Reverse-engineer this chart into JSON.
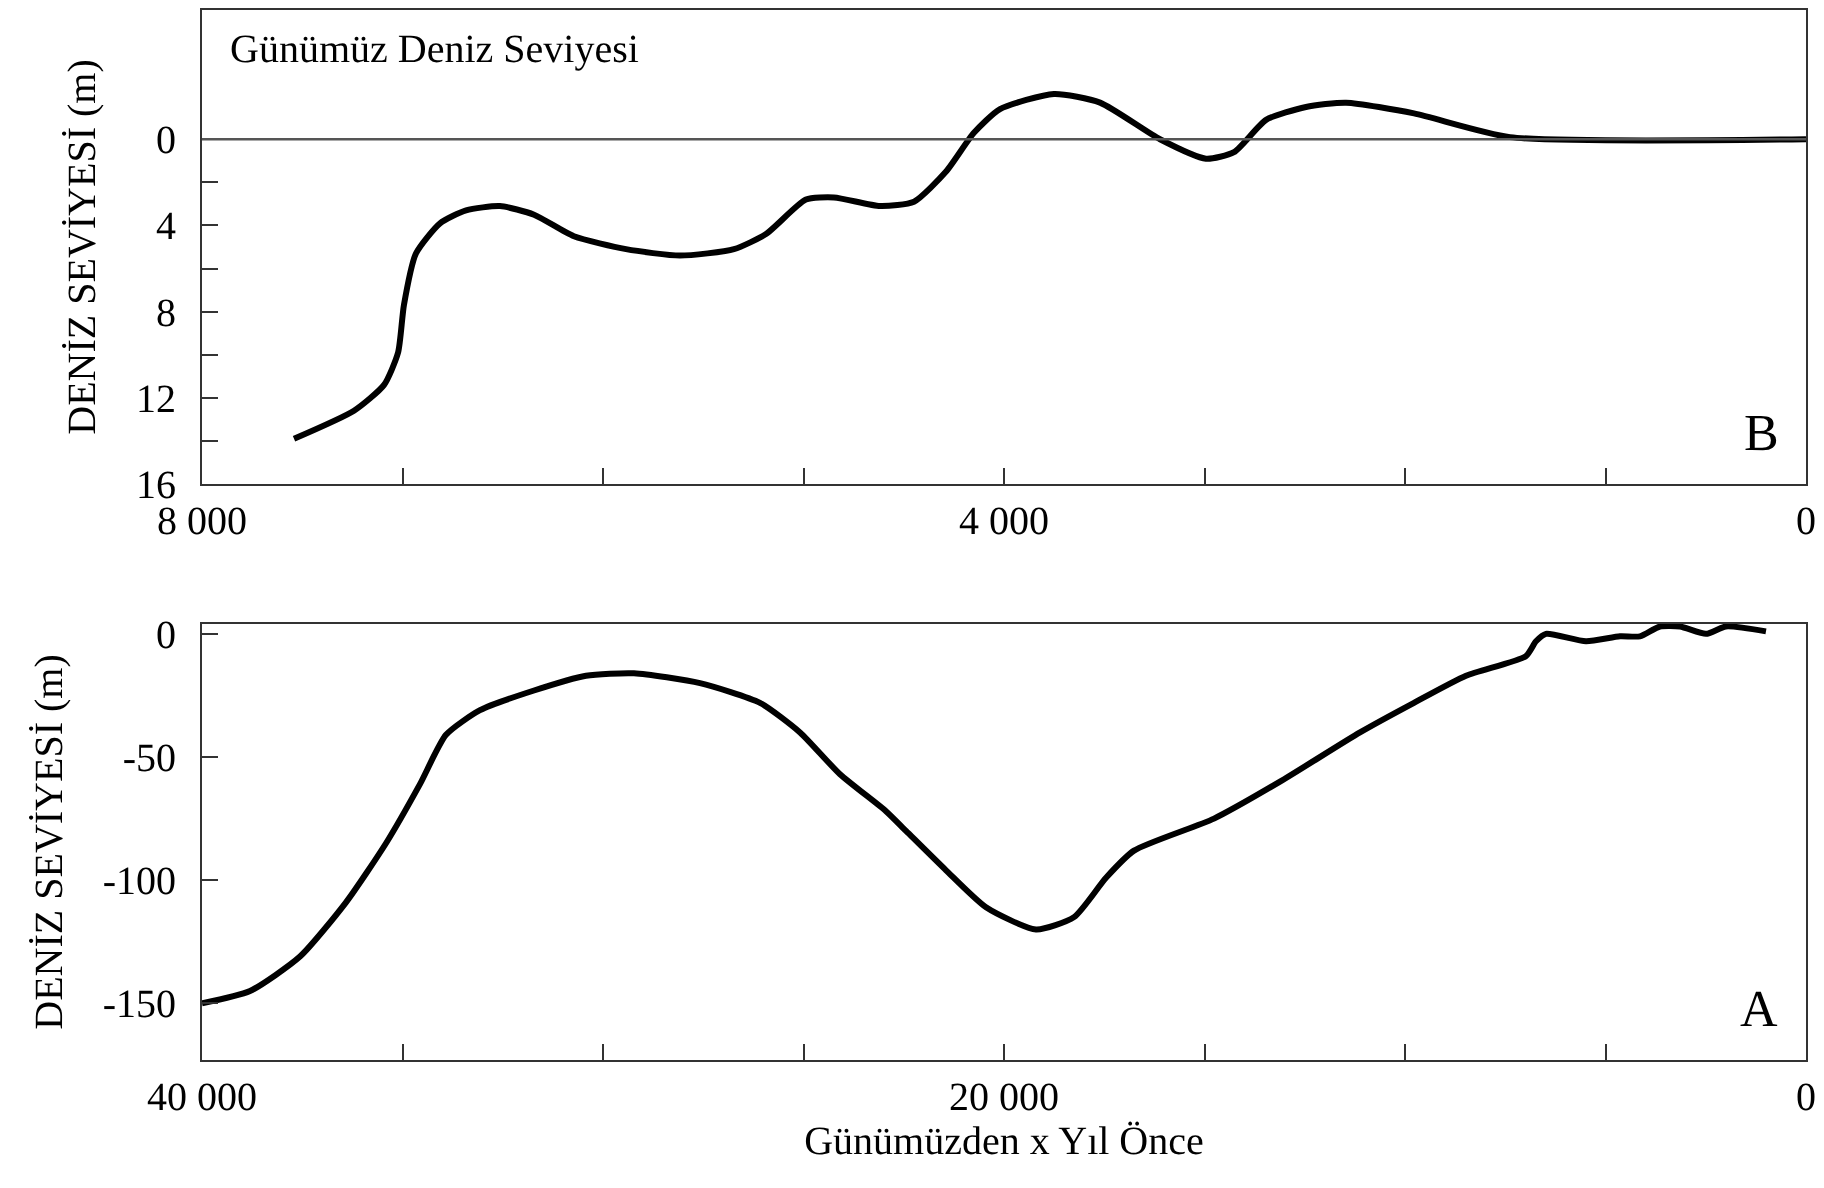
{
  "chart_data": [
    {
      "type": "line",
      "ylabel": "DENİZ SEVİYESİ (m)",
      "annotations": [
        "B"
      ],
      "grid": false,
      "x": [
        7541,
        7242,
        7092,
        7022,
        6993,
        6933,
        6813,
        6683,
        6514,
        6344,
        6145,
        5885,
        5616,
        5347,
        5187,
        4988,
        4848,
        4618,
        4449,
        4289,
        4150,
        4020,
        3751,
        3521,
        3222,
        2993,
        2853,
        2693,
        2494,
        2294,
        1955,
        1476,
        0
      ],
      "series": [
        {
          "color": "#000000",
          "values": [
            13.9,
            12.6,
            11.4,
            9.9,
            7.7,
            5.3,
            3.9,
            3.3,
            3.1,
            3.5,
            4.5,
            5.1,
            5.4,
            5.1,
            4.4,
            2.8,
            2.7,
            3.1,
            2.9,
            1.5,
            -0.3,
            -1.4,
            -2.1,
            -1.7,
            0,
            0.9,
            0.6,
            -0.9,
            -1.5,
            -1.7,
            -1.2,
            -0.1,
            0
          ]
        }
      ],
      "xlim": [
        8000,
        0
      ],
      "ylim": [
        16,
        -6
      ],
      "xticks": [
        {
          "value": 8000,
          "label": "8 000"
        },
        {
          "value": 7000,
          "label": null
        },
        {
          "value": 6000,
          "label": null
        },
        {
          "value": 5000,
          "label": null
        },
        {
          "value": 4000,
          "label": "4 000"
        },
        {
          "value": 3000,
          "label": null
        },
        {
          "value": 2000,
          "label": null
        },
        {
          "value": 1000,
          "label": null
        },
        0
      ],
      "yticks": [
        0,
        {
          "value": 2,
          "label": null
        },
        4,
        {
          "value": 6,
          "label": null
        },
        8,
        {
          "value": 10,
          "label": null
        },
        12,
        {
          "value": 14,
          "label": null
        },
        16
      ],
      "ref_lines": [
        {
          "axis": "y",
          "value": 0,
          "label": "Günümüz Deniz Seviyesi",
          "color": "#555555"
        }
      ]
    },
    {
      "type": "line",
      "xlabel": "Günümüzden x Yıl Önce",
      "ylabel": "DENİZ SEVİYESİ (m)",
      "annotations": [
        "A"
      ],
      "grid": false,
      "x": [
        40000,
        38803,
        37556,
        36409,
        35411,
        34564,
        33915,
        33067,
        31721,
        30424,
        29227,
        27581,
        26085,
        25087,
        24090,
        22943,
        22444,
        21446,
        20449,
        19202,
        18254,
        17456,
        16758,
        14763,
        13117,
        11122,
        9776,
        8479,
        6983,
        6733,
        6484,
        5486,
        4638,
        4140,
        3641,
        3142,
        2494,
        1995,
        998
      ],
      "series": [
        {
          "color": "#000000",
          "values": [
            -150,
            -145,
            -131,
            -109,
            -85,
            -61,
            -41,
            -31,
            -23,
            -17,
            -16,
            -20,
            -28,
            -40,
            -57,
            -72,
            -80,
            -96,
            -111,
            -120,
            -115,
            -99,
            -88,
            -75,
            -60,
            -40,
            -28,
            -17,
            -9,
            -3,
            0,
            -3,
            -1,
            -1,
            3,
            3,
            0,
            3,
            1
          ]
        }
      ],
      "xlim": [
        40000,
        0
      ],
      "ylim": [
        -173,
        4
      ],
      "xticks": [
        {
          "value": 40000,
          "label": "40 000"
        },
        {
          "value": 35000,
          "label": null
        },
        {
          "value": 30000,
          "label": null
        },
        {
          "value": 25000,
          "label": null
        },
        {
          "value": 20000,
          "label": "20 000"
        },
        {
          "value": 15000,
          "label": null
        },
        {
          "value": 10000,
          "label": null
        },
        {
          "value": 5000,
          "label": null
        },
        0
      ],
      "yticks": [
        0,
        -50,
        -100,
        -150
      ]
    }
  ]
}
